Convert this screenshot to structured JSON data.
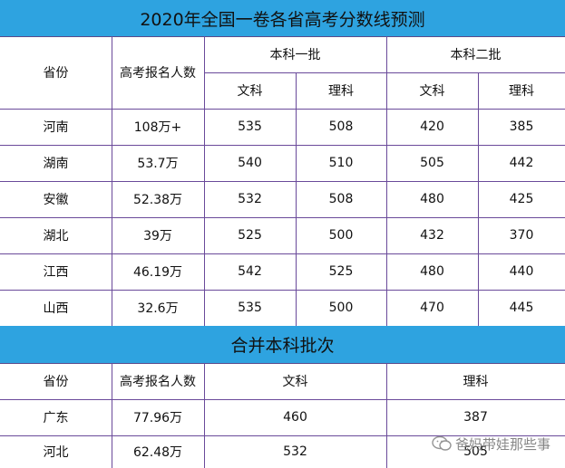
{
  "title1": "2020年全国一卷各省高考分数线预测",
  "table1": {
    "headers": {
      "province": "省份",
      "applicants": "高考报名人数",
      "tier1": "本科一批",
      "tier2": "本科二批",
      "tier1_arts": "文科",
      "tier1_sci": "理科",
      "tier2_arts": "文科",
      "tier2_sci": "理科"
    },
    "rows": [
      {
        "province": "河南",
        "applicants": "108万+",
        "t1_arts": "535",
        "t1_sci": "508",
        "t2_arts": "420",
        "t2_sci": "385"
      },
      {
        "province": "湖南",
        "applicants": "53.7万",
        "t1_arts": "540",
        "t1_sci": "510",
        "t2_arts": "505",
        "t2_sci": "442"
      },
      {
        "province": "安徽",
        "applicants": "52.38万",
        "t1_arts": "532",
        "t1_sci": "508",
        "t2_arts": "480",
        "t2_sci": "425"
      },
      {
        "province": "湖北",
        "applicants": "39万",
        "t1_arts": "525",
        "t1_sci": "500",
        "t2_arts": "432",
        "t2_sci": "370"
      },
      {
        "province": "江西",
        "applicants": "46.19万",
        "t1_arts": "542",
        "t1_sci": "525",
        "t2_arts": "480",
        "t2_sci": "440"
      },
      {
        "province": "山西",
        "applicants": "32.6万",
        "t1_arts": "535",
        "t1_sci": "500",
        "t2_arts": "470",
        "t2_sci": "445"
      }
    ]
  },
  "title2": "合并本科批次",
  "table2": {
    "headers": {
      "province": "省份",
      "applicants": "高考报名人数",
      "arts": "文科",
      "sci": "理科"
    },
    "rows": [
      {
        "province": "广东",
        "applicants": "77.96万",
        "arts": "460",
        "sci": "387"
      },
      {
        "province": "河北",
        "applicants": "62.48万",
        "arts": "532",
        "sci": "505"
      }
    ]
  },
  "watermark": {
    "text": "爸妈带娃那些事",
    "icon": "wechat-icon"
  },
  "colors": {
    "header_bg": "#2ea3e0",
    "grid": "#6a4a9a"
  }
}
